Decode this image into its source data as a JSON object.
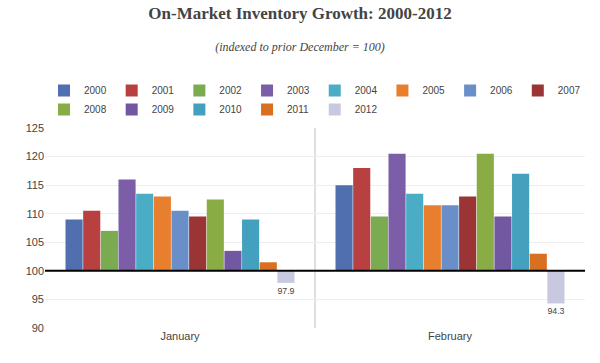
{
  "chart_data": {
    "type": "bar",
    "title": "On-Market Inventory Growth: 2000-2012",
    "subtitle": "(indexed to prior December = 100)",
    "categories": [
      "January",
      "February"
    ],
    "series": [
      {
        "name": "2000",
        "color": "#4f6faf",
        "values": [
          109.0,
          115.0
        ]
      },
      {
        "name": "2001",
        "color": "#b94040",
        "values": [
          110.5,
          118.0
        ]
      },
      {
        "name": "2002",
        "color": "#7aab50",
        "values": [
          107.0,
          109.5
        ]
      },
      {
        "name": "2003",
        "color": "#7b5ea7",
        "values": [
          116.0,
          120.5
        ]
      },
      {
        "name": "2004",
        "color": "#4bacc6",
        "values": [
          113.5,
          113.5
        ]
      },
      {
        "name": "2005",
        "color": "#e87f2e",
        "values": [
          113.0,
          111.5
        ]
      },
      {
        "name": "2006",
        "color": "#6a8fc8",
        "values": [
          110.5,
          111.5
        ]
      },
      {
        "name": "2007",
        "color": "#9b3535",
        "values": [
          109.5,
          113.0
        ]
      },
      {
        "name": "2008",
        "color": "#8aac45",
        "values": [
          112.5,
          120.5
        ]
      },
      {
        "name": "2009",
        "color": "#7158a0",
        "values": [
          103.5,
          109.5
        ]
      },
      {
        "name": "2010",
        "color": "#43a0be",
        "values": [
          109.0,
          117.0
        ]
      },
      {
        "name": "2011",
        "color": "#d97020",
        "values": [
          101.5,
          103.0
        ]
      },
      {
        "name": "2012",
        "color": "#c8c8e0",
        "values": [
          97.9,
          94.3
        ]
      }
    ],
    "baseline": 100,
    "annotations": [
      {
        "text": "97.9",
        "category": "January",
        "series": "2012"
      },
      {
        "text": "94.3",
        "category": "February",
        "series": "2012"
      }
    ],
    "ylim": [
      90,
      125
    ],
    "yticks": [
      90,
      95,
      100,
      105,
      110,
      115,
      120,
      125
    ],
    "grid": true,
    "legend": "top"
  }
}
